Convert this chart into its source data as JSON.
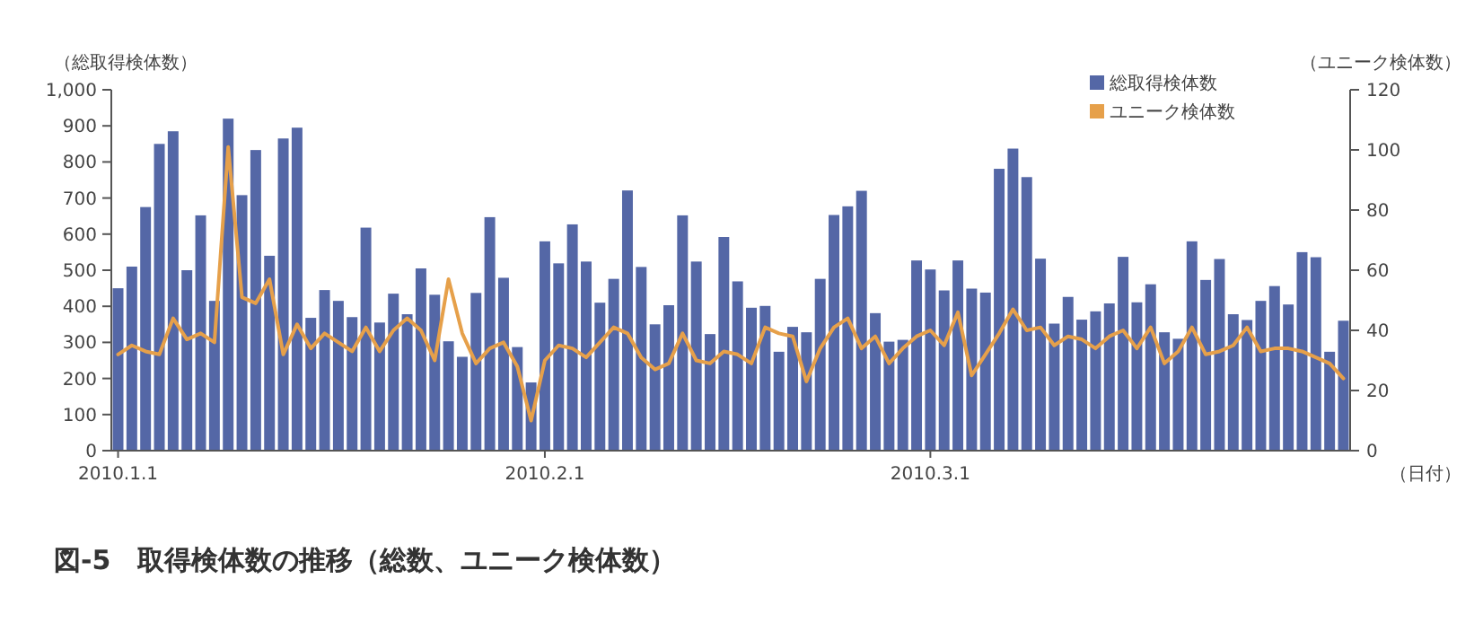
{
  "chart_data": {
    "type": "bar",
    "title": "図-5　取得検体数の推移（総数、ユニーク検体数）",
    "xlabel": "（日付）",
    "ylabel": "（総取得検体数）",
    "y2label": "（ユニーク検体数）",
    "categories": [
      "2010.1.1",
      null,
      null,
      null,
      null,
      null,
      null,
      null,
      null,
      null,
      null,
      null,
      null,
      null,
      null,
      null,
      null,
      null,
      null,
      null,
      null,
      null,
      null,
      null,
      null,
      null,
      null,
      null,
      null,
      null,
      null,
      "2010.2.1",
      null,
      null,
      null,
      null,
      null,
      null,
      null,
      null,
      null,
      null,
      null,
      null,
      null,
      null,
      null,
      null,
      null,
      null,
      null,
      null,
      null,
      null,
      null,
      null,
      null,
      null,
      null,
      "2010.3.1",
      null,
      null,
      null,
      null,
      null,
      null,
      null,
      null,
      null,
      null,
      null,
      null,
      null,
      null,
      null,
      null,
      null,
      null,
      null,
      null,
      null,
      null,
      null,
      null,
      null,
      null,
      null,
      null,
      null,
      null
    ],
    "series": [
      {
        "name": "総取得検体数",
        "color": "#5467a6",
        "values": [
          450,
          510,
          675,
          850,
          885,
          500,
          652,
          415,
          920,
          708,
          833,
          540,
          865,
          895,
          368,
          445,
          415,
          370,
          618,
          355,
          435,
          378,
          505,
          432,
          303,
          260,
          437,
          647,
          479,
          287,
          189,
          580,
          519,
          627,
          524,
          410,
          476,
          721,
          509,
          350,
          403,
          652,
          524,
          323,
          592,
          469,
          396,
          401,
          274,
          343,
          328,
          476,
          653,
          677,
          720,
          381,
          302,
          307,
          527,
          502,
          444,
          527,
          449,
          438,
          781,
          837,
          758,
          532,
          352,
          426,
          363,
          386,
          408,
          537,
          411,
          461,
          328,
          310,
          580,
          473,
          531,
          378,
          362,
          415,
          456,
          405,
          550,
          536,
          274,
          360
        ]
      },
      {
        "name": "ユニーク検体数",
        "type": "line",
        "axis": "y2",
        "color": "#e6a04a",
        "values": [
          32,
          35,
          33,
          32,
          44,
          37,
          39,
          36,
          101,
          51,
          49,
          57,
          32,
          42,
          34,
          39,
          36,
          33,
          41,
          33,
          40,
          44,
          40,
          30,
          57,
          39,
          29,
          34,
          36,
          28,
          10,
          30,
          35,
          34,
          31,
          36,
          41,
          39,
          31,
          27,
          29,
          39,
          30,
          29,
          33,
          32,
          29,
          41,
          39,
          38,
          23,
          34,
          41,
          44,
          34,
          38,
          29,
          34,
          38,
          40,
          35,
          46,
          25,
          32,
          39,
          47,
          40,
          41,
          35,
          38,
          37,
          34,
          38,
          40,
          34,
          41,
          29,
          33,
          41,
          32,
          33,
          35,
          41,
          33,
          34,
          34,
          33,
          31,
          29,
          24
        ]
      }
    ],
    "ylim": [
      0,
      1000
    ],
    "yticks": [
      0,
      100,
      200,
      300,
      400,
      500,
      600,
      700,
      800,
      900,
      {
        "value": 1000,
        "label": "1,000"
      }
    ],
    "y2lim": [
      0,
      120
    ],
    "y2ticks": [
      0,
      20,
      40,
      60,
      80,
      100,
      120
    ],
    "legend": "top right",
    "grid": false,
    "marker": "none",
    "line_style": "solid"
  }
}
